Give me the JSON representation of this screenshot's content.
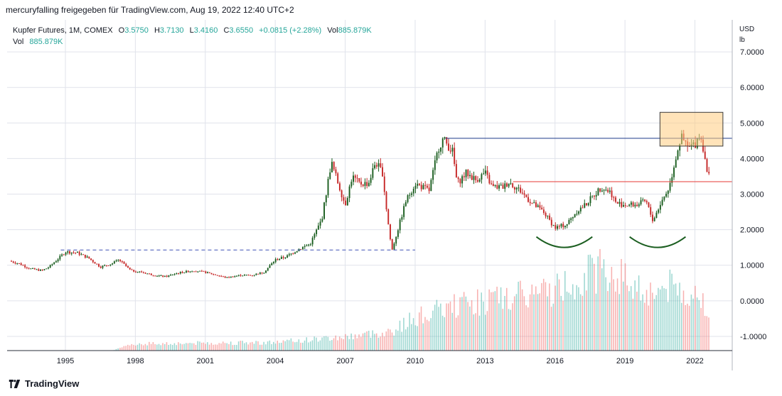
{
  "header": {
    "publish_text": "mercuryfalling freigegeben für TradingView.com, Aug 19, 2022 12:40 UTC+2"
  },
  "legend": {
    "symbol": "Kupfer Futures, 1M, COMEX",
    "open_label": "O",
    "open": "3.5750",
    "high_label": "H",
    "high": "3.7130",
    "low_label": "L",
    "low": "3.4160",
    "close_label": "C",
    "close": "3.6550",
    "change": "+0.0815 (+2.28%)",
    "vol_label": "Vol",
    "vol": "885.879K",
    "vol_row_label": "Vol",
    "vol_row_value": "885.879K"
  },
  "axis": {
    "currency": "USD",
    "unit": "lb"
  },
  "footer": {
    "brand": "TradingView"
  },
  "colors": {
    "up": "#26a69a",
    "down": "#ef5350",
    "up_candle": "#1b5e20",
    "down_candle": "#c62828",
    "resistance_line": "#1e3a8a",
    "support_line": "#e53935",
    "dashed_line": "#3f51b5",
    "highlight_box": "#ffcc80",
    "arc": "#1b5e20",
    "grid": "#e0e3eb",
    "text": "#131722"
  },
  "chart_data": {
    "type": "candlestick",
    "title": "Kupfer Futures, 1M, COMEX",
    "y_axis_ticks": [
      "7.0000",
      "6.0000",
      "5.0000",
      "4.0000",
      "3.0000",
      "2.0000",
      "1.0000",
      "0.0000",
      "-1.0000"
    ],
    "x_axis_ticks": [
      "1995",
      "1998",
      "2001",
      "2004",
      "2007",
      "2010",
      "2013",
      "2016",
      "2019",
      "2022"
    ],
    "ylim": [
      -1.4,
      7.9
    ],
    "xlim": [
      1992.5,
      2023.6
    ],
    "grid": true,
    "price_path": [
      [
        1992.6,
        1.12
      ],
      [
        1993.0,
        1.05
      ],
      [
        1993.5,
        0.9
      ],
      [
        1994.0,
        0.85
      ],
      [
        1994.3,
        0.95
      ],
      [
        1994.8,
        1.25
      ],
      [
        1995.0,
        1.38
      ],
      [
        1995.5,
        1.35
      ],
      [
        1996.0,
        1.2
      ],
      [
        1996.5,
        0.95
      ],
      [
        1997.0,
        1.05
      ],
      [
        1997.3,
        1.15
      ],
      [
        1997.8,
        0.85
      ],
      [
        1998.3,
        0.8
      ],
      [
        1998.8,
        0.72
      ],
      [
        1999.3,
        0.68
      ],
      [
        1999.8,
        0.78
      ],
      [
        2000.5,
        0.85
      ],
      [
        2001.0,
        0.8
      ],
      [
        2001.5,
        0.72
      ],
      [
        2001.9,
        0.65
      ],
      [
        2002.5,
        0.72
      ],
      [
        2003.0,
        0.72
      ],
      [
        2003.5,
        0.8
      ],
      [
        2004.0,
        1.15
      ],
      [
        2004.5,
        1.25
      ],
      [
        2005.0,
        1.45
      ],
      [
        2005.5,
        1.6
      ],
      [
        2006.0,
        2.3
      ],
      [
        2006.4,
        3.9
      ],
      [
        2006.6,
        3.5
      ],
      [
        2007.0,
        2.7
      ],
      [
        2007.3,
        3.5
      ],
      [
        2007.6,
        3.3
      ],
      [
        2008.0,
        3.3
      ],
      [
        2008.3,
        3.9
      ],
      [
        2008.6,
        3.6
      ],
      [
        2008.8,
        2.4
      ],
      [
        2009.0,
        1.4
      ],
      [
        2009.3,
        2.1
      ],
      [
        2009.6,
        2.8
      ],
      [
        2010.0,
        3.3
      ],
      [
        2010.3,
        3.2
      ],
      [
        2010.6,
        3.1
      ],
      [
        2011.0,
        4.3
      ],
      [
        2011.2,
        4.55
      ],
      [
        2011.6,
        4.2
      ],
      [
        2011.8,
        3.3
      ],
      [
        2012.2,
        3.6
      ],
      [
        2012.6,
        3.4
      ],
      [
        2013.0,
        3.6
      ],
      [
        2013.3,
        3.2
      ],
      [
        2013.8,
        3.2
      ],
      [
        2014.0,
        3.35
      ],
      [
        2014.5,
        3.1
      ],
      [
        2015.0,
        2.75
      ],
      [
        2015.5,
        2.5
      ],
      [
        2016.0,
        2.05
      ],
      [
        2016.5,
        2.15
      ],
      [
        2016.9,
        2.5
      ],
      [
        2017.3,
        2.7
      ],
      [
        2017.7,
        3.0
      ],
      [
        2018.0,
        3.2
      ],
      [
        2018.4,
        3.05
      ],
      [
        2018.6,
        2.75
      ],
      [
        2019.0,
        2.7
      ],
      [
        2019.5,
        2.7
      ],
      [
        2019.9,
        2.8
      ],
      [
        2020.2,
        2.25
      ],
      [
        2020.5,
        2.7
      ],
      [
        2020.9,
        3.2
      ],
      [
        2021.2,
        4.1
      ],
      [
        2021.4,
        4.6
      ],
      [
        2021.7,
        4.3
      ],
      [
        2022.0,
        4.4
      ],
      [
        2022.2,
        4.7
      ],
      [
        2022.4,
        4.2
      ],
      [
        2022.55,
        3.4
      ],
      [
        2022.65,
        3.65
      ]
    ],
    "volume_envelope": [
      [
        1992.6,
        0.0
      ],
      [
        1997.0,
        0.0
      ],
      [
        1998.0,
        0.25
      ],
      [
        2004.0,
        0.3
      ],
      [
        2007.0,
        0.5
      ],
      [
        2009.0,
        0.7
      ],
      [
        2010.0,
        1.2
      ],
      [
        2012.0,
        1.7
      ],
      [
        2014.0,
        1.9
      ],
      [
        2016.0,
        2.2
      ],
      [
        2017.0,
        2.6
      ],
      [
        2018.0,
        3.0
      ],
      [
        2019.0,
        2.6
      ],
      [
        2020.0,
        2.1
      ],
      [
        2021.0,
        2.3
      ],
      [
        2022.0,
        2.0
      ],
      [
        2022.65,
        1.6
      ]
    ],
    "annotations": [
      {
        "kind": "horizontal-line",
        "from": 2011.3,
        "to": 2023.6,
        "y": 4.57,
        "color": "#1e3a8a"
      },
      {
        "kind": "horizontal-line",
        "from": 2014.2,
        "to": 2023.6,
        "y": 3.35,
        "color": "#e53935"
      },
      {
        "kind": "dashed-line",
        "from": 1994.8,
        "to": 2010.0,
        "y": 1.43,
        "color": "#3f51b5"
      },
      {
        "kind": "rectangle",
        "x0": 2020.5,
        "x1": 2023.2,
        "y0": 4.35,
        "y1": 5.3,
        "color": "#ffcc80"
      },
      {
        "kind": "arc",
        "x0": 2015.2,
        "x1": 2017.6,
        "y": 1.8
      },
      {
        "kind": "arc",
        "x0": 2019.2,
        "x1": 2021.6,
        "y": 1.8
      }
    ]
  }
}
